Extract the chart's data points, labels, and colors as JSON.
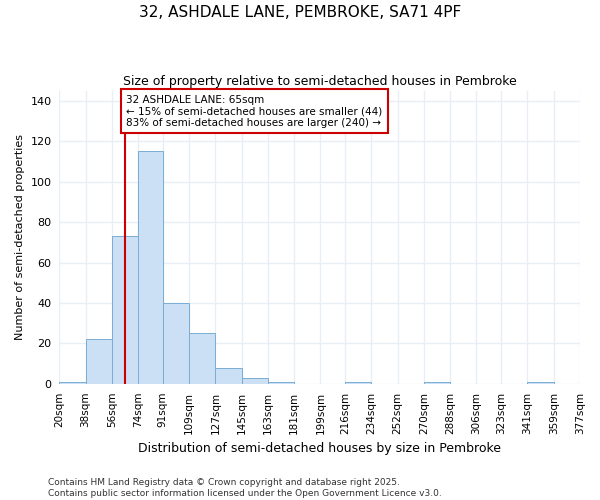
{
  "title_line1": "32, ASHDALE LANE, PEMBROKE, SA71 4PF",
  "title_line2": "Size of property relative to semi-detached houses in Pembroke",
  "xlabel": "Distribution of semi-detached houses by size in Pembroke",
  "ylabel": "Number of semi-detached properties",
  "bar_color": "#cce0f5",
  "bar_edge_color": "#7aadd4",
  "background_color": "#ffffff",
  "grid_color": "#e8eef5",
  "annotation_text": "32 ASHDALE LANE: 65sqm\n← 15% of semi-detached houses are smaller (44)\n83% of semi-detached houses are larger (240) →",
  "vline_x": 65,
  "vline_color": "#cc0000",
  "bin_edges": [
    20,
    38,
    56,
    74,
    91,
    109,
    127,
    145,
    163,
    181,
    199,
    216,
    234,
    252,
    270,
    288,
    306,
    323,
    341,
    359,
    377
  ],
  "bin_labels": [
    "20sqm",
    "38sqm",
    "56sqm",
    "74sqm",
    "91sqm",
    "109sqm",
    "127sqm",
    "145sqm",
    "163sqm",
    "181sqm",
    "199sqm",
    "216sqm",
    "234sqm",
    "252sqm",
    "270sqm",
    "288sqm",
    "306sqm",
    "323sqm",
    "341sqm",
    "359sqm",
    "377sqm"
  ],
  "bar_heights": [
    1,
    22,
    73,
    115,
    40,
    25,
    8,
    3,
    1,
    0,
    0,
    1,
    0,
    0,
    1,
    0,
    0,
    0,
    1,
    0,
    0
  ],
  "ylim": [
    0,
    145
  ],
  "yticks": [
    0,
    20,
    40,
    60,
    80,
    100,
    120,
    140
  ],
  "footer_text": "Contains HM Land Registry data © Crown copyright and database right 2025.\nContains public sector information licensed under the Open Government Licence v3.0.",
  "annotation_box_color": "white",
  "annotation_box_edge": "#cc0000",
  "fig_width": 6.0,
  "fig_height": 5.0,
  "dpi": 100
}
